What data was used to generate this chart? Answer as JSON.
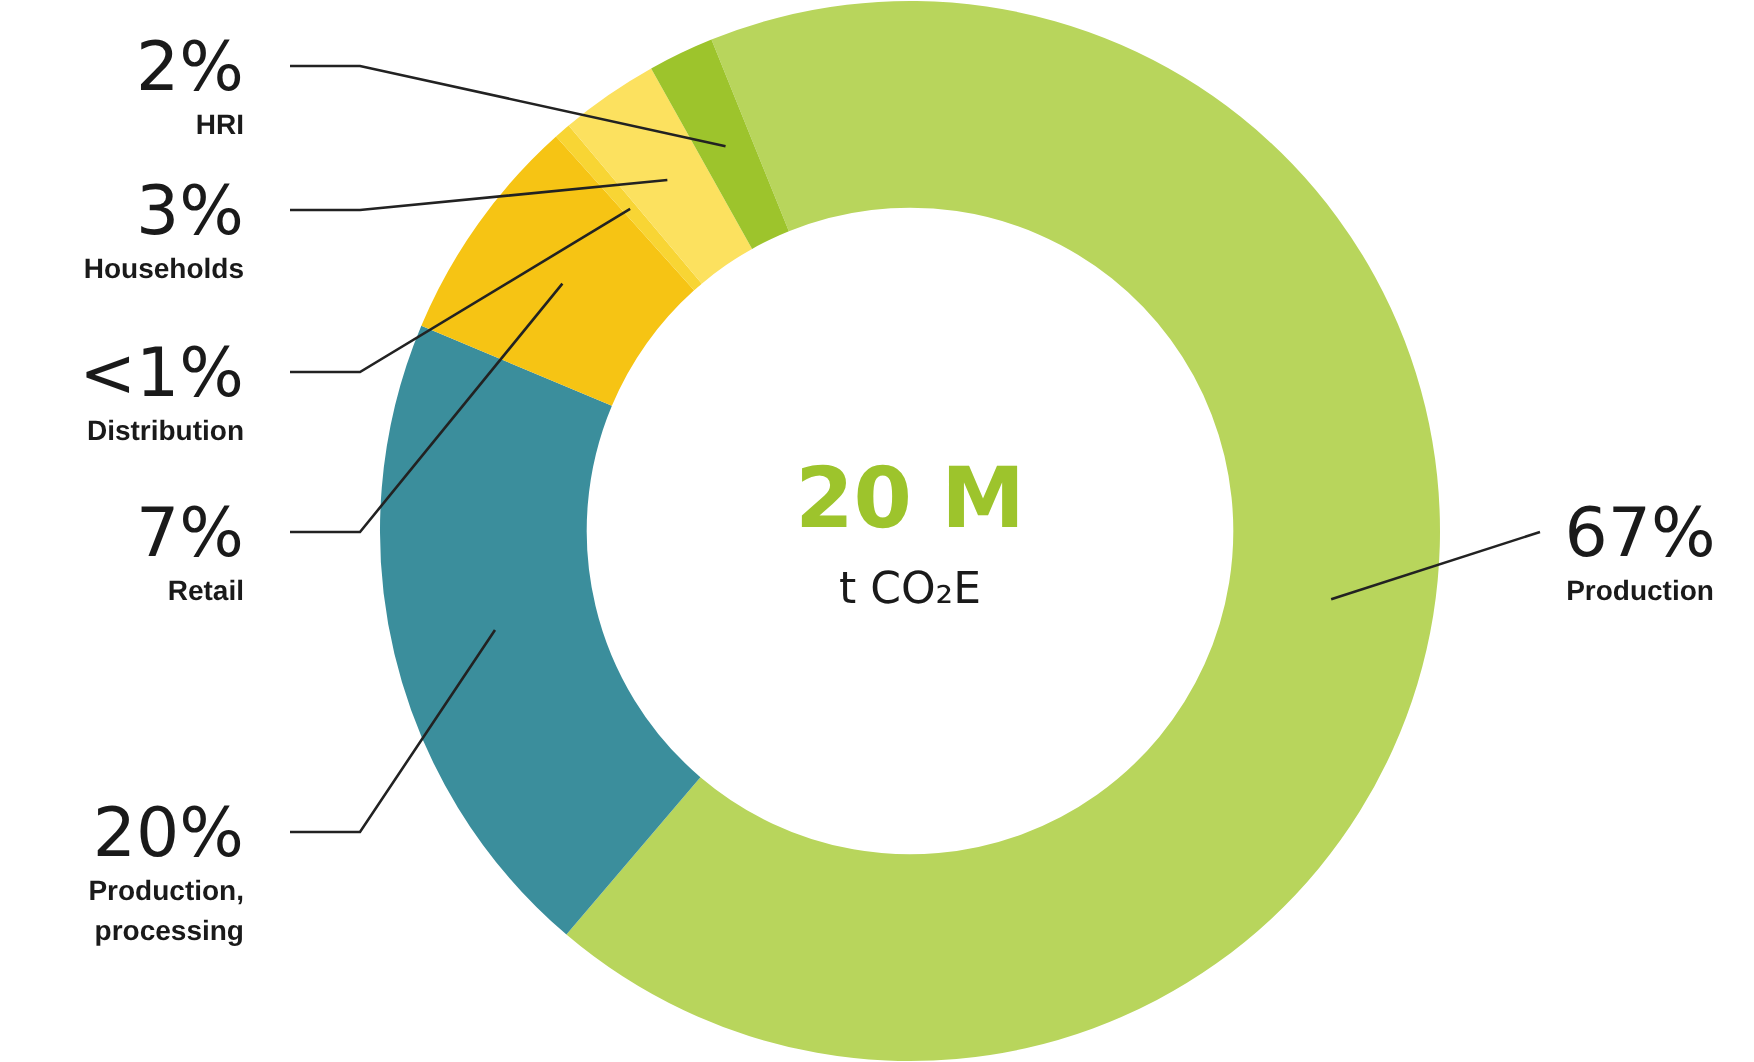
{
  "chart_data": {
    "type": "donut",
    "categories": [
      "Production",
      "Production, processing",
      "Retail",
      "Distribution",
      "Households",
      "HRI"
    ],
    "values": [
      67,
      20,
      7,
      0.5,
      3,
      2
    ],
    "value_labels": [
      "67%",
      "20%",
      "7%",
      "<1%",
      "3%",
      "2%"
    ],
    "colors": [
      "#b8d55c",
      "#3b8e9c",
      "#f6c414",
      "#f8d534",
      "#fce15f",
      "#9dc42c"
    ],
    "annotations": [
      "20 M",
      "t CO₂E"
    ]
  }
}
